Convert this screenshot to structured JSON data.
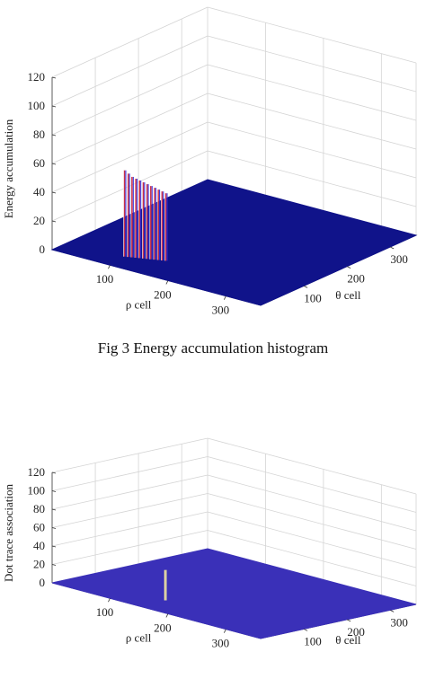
{
  "chart_data": [
    {
      "type": "surface3d",
      "title": "",
      "xlabel": "ρ cell",
      "ylabel": "θ cell",
      "zlabel": "Energy accumulation",
      "xticks": [
        100,
        200,
        300
      ],
      "yticks": [
        100,
        200,
        300
      ],
      "zticks": [
        0,
        20,
        40,
        60,
        80,
        100,
        120
      ],
      "xlim": [
        0,
        360
      ],
      "ylim": [
        0,
        360
      ],
      "zlim": [
        0,
        120
      ],
      "surface_color": "#10138a",
      "peak_colors": [
        "#c8304a",
        "#ffffff",
        "#2a2ae0"
      ],
      "peaks": [
        {
          "rho": 95,
          "theta": 40,
          "z": 60
        },
        {
          "rho": 100,
          "theta": 42,
          "z": 58
        },
        {
          "rho": 105,
          "theta": 44,
          "z": 56
        },
        {
          "rho": 110,
          "theta": 46,
          "z": 55
        },
        {
          "rho": 115,
          "theta": 48,
          "z": 54
        },
        {
          "rho": 120,
          "theta": 50,
          "z": 53
        },
        {
          "rho": 125,
          "theta": 52,
          "z": 52
        },
        {
          "rho": 130,
          "theta": 54,
          "z": 51
        },
        {
          "rho": 135,
          "theta": 56,
          "z": 50
        },
        {
          "rho": 140,
          "theta": 58,
          "z": 49
        },
        {
          "rho": 145,
          "theta": 60,
          "z": 48
        },
        {
          "rho": 150,
          "theta": 62,
          "z": 47
        }
      ]
    },
    {
      "type": "surface3d",
      "title": "",
      "xlabel": "ρ cell",
      "ylabel": "θ cell",
      "zlabel": "Dot trace association",
      "xticks": [
        100,
        200,
        300
      ],
      "yticks": [
        100,
        200,
        300
      ],
      "zticks": [
        0,
        20,
        40,
        60,
        80,
        100,
        120
      ],
      "xlim": [
        0,
        360
      ],
      "ylim": [
        0,
        360
      ],
      "zlim": [
        0,
        120
      ],
      "surface_color": "#3a30b8",
      "peak_colors": [
        "#f3e7a0"
      ],
      "peaks": [
        {
          "rho": 150,
          "theta": 60,
          "z": 33
        }
      ]
    }
  ],
  "captions": {
    "fig3": "Fig 3 Energy accumulation histogram"
  }
}
